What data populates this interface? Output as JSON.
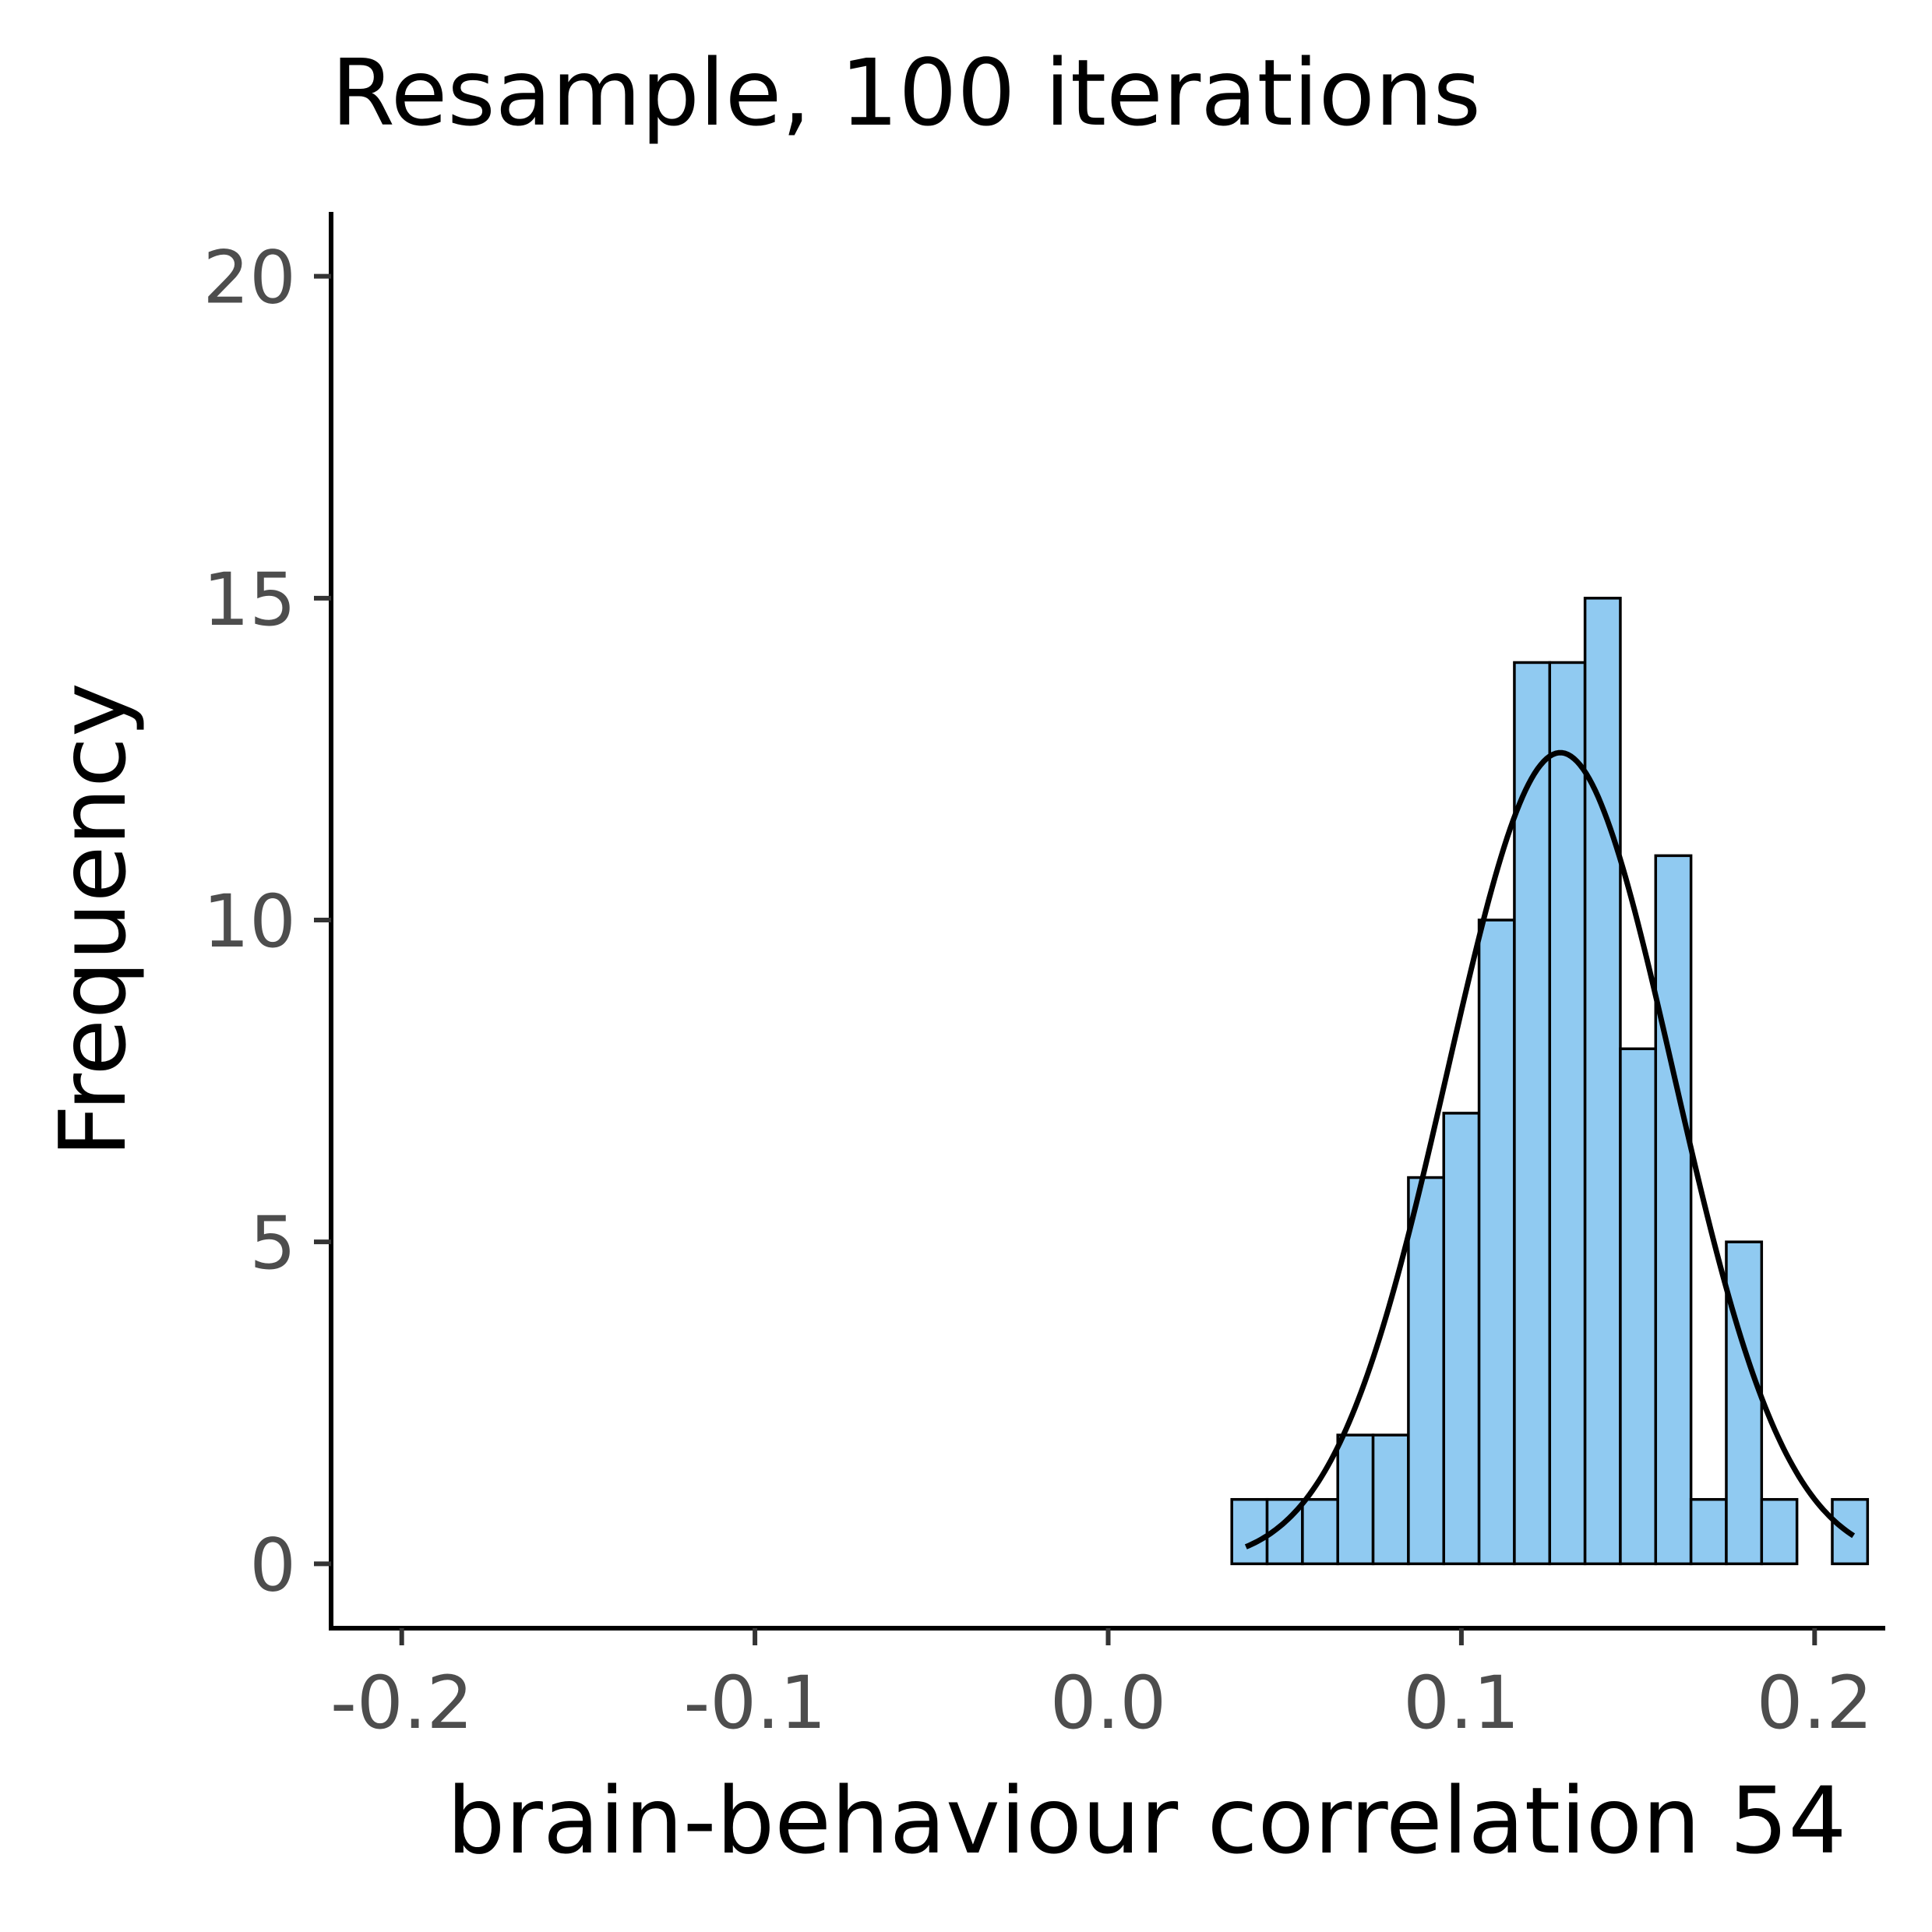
{
  "chart_data": {
    "type": "bar",
    "title": "Resample, 100 iterations",
    "xlabel": "brain-behaviour correlation 54",
    "ylabel": "Frequency",
    "xlim": [
      -0.22,
      0.22
    ],
    "ylim": [
      -1,
      21
    ],
    "x_ticks": [
      -0.2,
      -0.1,
      0.0,
      0.1,
      0.2
    ],
    "x_tick_labels": [
      "-0.2",
      "-0.1",
      "0.0",
      "0.1",
      "0.2"
    ],
    "y_ticks": [
      0,
      5,
      10,
      15,
      20
    ],
    "y_tick_labels": [
      "0",
      "5",
      "10",
      "15",
      "20"
    ],
    "bins": [
      {
        "x0": 0.035,
        "x1": 0.045,
        "count": 1
      },
      {
        "x0": 0.045,
        "x1": 0.055,
        "count": 1
      },
      {
        "x0": 0.055,
        "x1": 0.065,
        "count": 1
      },
      {
        "x0": 0.065,
        "x1": 0.075,
        "count": 2
      },
      {
        "x0": 0.075,
        "x1": 0.085,
        "count": 2
      },
      {
        "x0": 0.085,
        "x1": 0.095,
        "count": 6
      },
      {
        "x0": 0.095,
        "x1": 0.105,
        "count": 7
      },
      {
        "x0": 0.105,
        "x1": 0.115,
        "count": 10
      },
      {
        "x0": 0.115,
        "x1": 0.125,
        "count": 14
      },
      {
        "x0": 0.125,
        "x1": 0.135,
        "count": 14
      },
      {
        "x0": 0.135,
        "x1": 0.145,
        "count": 15
      },
      {
        "x0": 0.145,
        "x1": 0.155,
        "count": 8
      },
      {
        "x0": 0.155,
        "x1": 0.165,
        "count": 11
      },
      {
        "x0": 0.165,
        "x1": 0.175,
        "count": 1
      },
      {
        "x0": 0.175,
        "x1": 0.185,
        "count": 5
      },
      {
        "x0": 0.185,
        "x1": 0.195,
        "count": 1
      },
      {
        "x0": 0.195,
        "x1": 0.205,
        "count": 0
      },
      {
        "x0": 0.205,
        "x1": 0.215,
        "count": 1
      }
    ],
    "normal_fit": {
      "mean": 0.128,
      "sd": 0.032,
      "x_range": [
        0.039,
        0.211
      ],
      "peak": 12.6
    },
    "grid": false,
    "legend": "none",
    "colors": {
      "bar_fill": "#90caf1",
      "bar_stroke": "#000000",
      "curve": "#000000"
    }
  }
}
